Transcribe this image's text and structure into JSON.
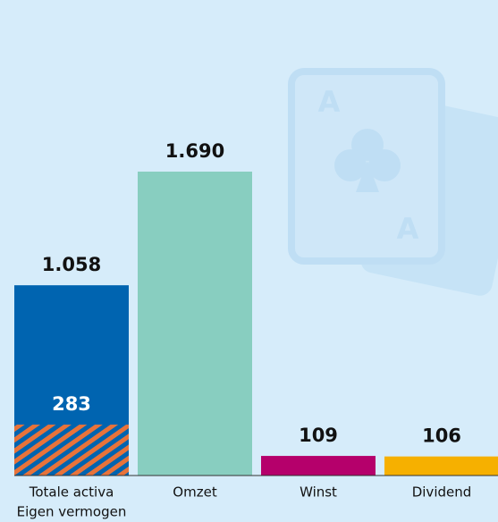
{
  "chart_data": {
    "type": "bar",
    "categories": [
      "Totale activa",
      "Omzet",
      "Winst",
      "Dividend"
    ],
    "values": [
      1058,
      1690,
      109,
      106
    ],
    "value_labels": [
      "1.058",
      "1.690",
      "109",
      "106"
    ],
    "colors": [
      "#0064b0",
      "#88cec0",
      "#b5006b",
      "#f6b000"
    ],
    "overlay": {
      "name": "Eigen vermogen",
      "value": 283,
      "color": "#e8733a"
    }
  }
}
